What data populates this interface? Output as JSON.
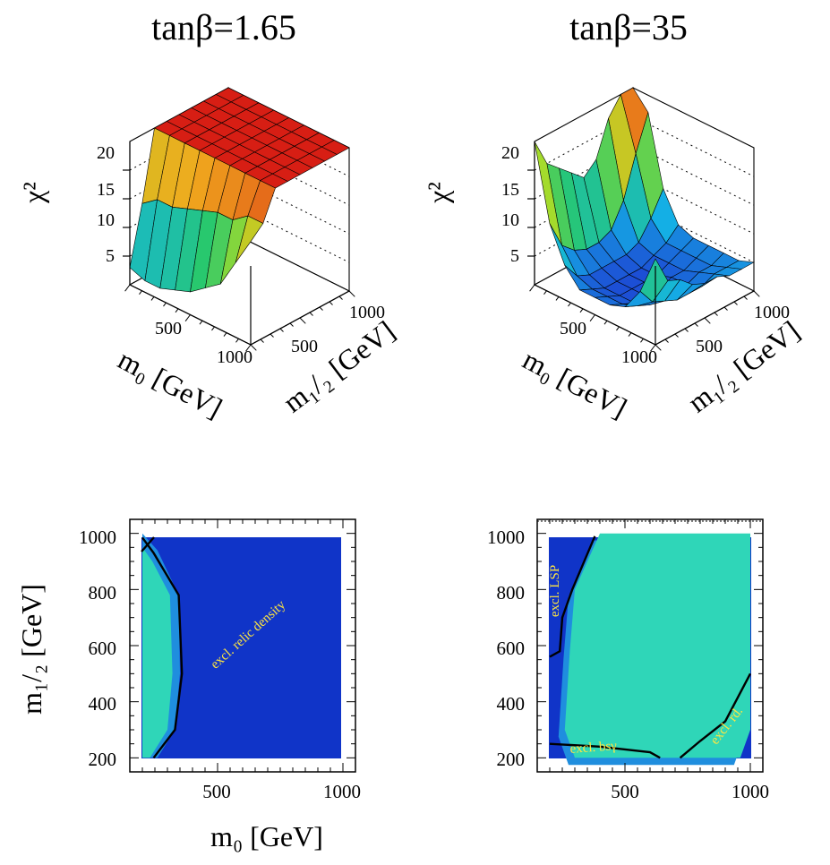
{
  "chart_data": [
    {
      "type": "surface",
      "title": "tanβ=1.65",
      "zlabel": "χ²",
      "xlabel": "m₀ [GeV]",
      "ylabel": "m₁/₂ [GeV]",
      "z_ticks": [
        "5",
        "10",
        "15",
        "20"
      ],
      "x_ticks": [
        "500",
        "1000"
      ],
      "y_ticks": [
        "500",
        "1000"
      ],
      "zlim": [
        0,
        25
      ],
      "x": [
        200,
        300,
        400,
        500,
        600,
        700,
        800,
        900,
        1000
      ],
      "y": [
        200,
        300,
        400,
        500,
        600,
        700,
        800,
        900,
        1000
      ],
      "z": [
        [
          3,
          2,
          2,
          3,
          4,
          6,
          8,
          13,
          18
        ],
        [
          13,
          15,
          15,
          16,
          17,
          18,
          18,
          20,
          20
        ],
        [
          25,
          25,
          25,
          25,
          25,
          25,
          25,
          25,
          25
        ],
        [
          25,
          25,
          25,
          25,
          25,
          25,
          25,
          25,
          25
        ],
        [
          25,
          25,
          25,
          25,
          25,
          25,
          25,
          25,
          25
        ],
        [
          25,
          25,
          25,
          25,
          25,
          25,
          25,
          25,
          25
        ],
        [
          25,
          25,
          25,
          25,
          25,
          25,
          25,
          25,
          25
        ],
        [
          25,
          25,
          25,
          25,
          25,
          25,
          25,
          25,
          25
        ],
        [
          25,
          25,
          25,
          25,
          25,
          25,
          25,
          25,
          25
        ]
      ]
    },
    {
      "type": "surface",
      "title": "tanβ=35",
      "zlabel": "χ²",
      "xlabel": "m₀ [GeV]",
      "ylabel": "m₁/₂ [GeV]",
      "z_ticks": [
        "5",
        "10",
        "15",
        "20"
      ],
      "x_ticks": [
        "500",
        "1000"
      ],
      "y_ticks": [
        "500",
        "1000"
      ],
      "zlim": [
        0,
        25
      ],
      "x": [
        200,
        300,
        400,
        500,
        600,
        700,
        800,
        900,
        1000
      ],
      "y": [
        200,
        300,
        400,
        500,
        600,
        700,
        800,
        900,
        1000
      ],
      "z": [
        [
          25,
          12,
          6,
          3,
          3,
          3,
          4,
          8,
          15
        ],
        [
          20,
          7,
          3,
          2,
          2,
          2,
          3,
          5,
          10
        ],
        [
          18,
          5,
          2,
          1,
          1,
          1,
          2,
          4,
          9
        ],
        [
          16,
          4,
          2,
          1,
          1,
          1,
          2,
          3,
          7
        ],
        [
          14,
          4,
          2,
          1,
          1,
          1,
          2,
          3,
          6
        ],
        [
          16,
          5,
          2,
          1,
          1,
          2,
          2,
          3,
          6
        ],
        [
          22,
          9,
          3,
          2,
          2,
          2,
          3,
          4,
          5
        ],
        [
          25,
          16,
          6,
          3,
          3,
          3,
          3,
          4,
          5
        ],
        [
          25,
          22,
          10,
          5,
          4,
          4,
          4,
          4,
          5
        ]
      ]
    },
    {
      "type": "contour",
      "xlabel": "m₀ [GeV]",
      "ylabel": "m₁/₂ [GeV]",
      "x_ticks": [
        "500",
        "1000"
      ],
      "y_ticks": [
        "200",
        "400",
        "600",
        "800",
        "1000"
      ],
      "xlim": [
        150,
        1050
      ],
      "ylim": [
        150,
        1050
      ],
      "colors": {
        "excluded": "#1034c8",
        "band": "#1f8ede",
        "allowed": "#2fd6b8",
        "label": "#ffe640"
      },
      "annotations": [
        "excl. relic density"
      ],
      "allowed_region": [
        [
          200,
          200
        ],
        [
          230,
          200
        ],
        [
          300,
          300
        ],
        [
          320,
          500
        ],
        [
          310,
          780
        ],
        [
          240,
          900
        ],
        [
          200,
          950
        ]
      ],
      "band_region": [
        [
          200,
          200
        ],
        [
          260,
          200
        ],
        [
          330,
          300
        ],
        [
          350,
          500
        ],
        [
          345,
          780
        ],
        [
          260,
          940
        ],
        [
          200,
          1000
        ]
      ],
      "boundary": [
        [
          245,
          200
        ],
        [
          330,
          300
        ],
        [
          358,
          500
        ],
        [
          345,
          780
        ],
        [
          245,
          930
        ],
        [
          200,
          985
        ]
      ]
    },
    {
      "type": "contour",
      "xlabel": "",
      "ylabel": "",
      "x_ticks": [
        "500",
        "1000"
      ],
      "y_ticks": [
        "200",
        "400",
        "600",
        "800",
        "1000"
      ],
      "xlim": [
        150,
        1050
      ],
      "ylim": [
        150,
        1050
      ],
      "colors": {
        "excluded": "#1034c8",
        "band": "#1f8ede",
        "allowed": "#2fd6b8",
        "label": "#ffe640"
      },
      "annotations": [
        "excl. LSP",
        "excl. bsγ",
        "excl. rd."
      ],
      "allowed_region": [
        [
          300,
          200
        ],
        [
          960,
          200
        ],
        [
          1000,
          300
        ],
        [
          1000,
          1000
        ],
        [
          400,
          1000
        ],
        [
          300,
          800
        ],
        [
          280,
          580
        ],
        [
          260,
          300
        ]
      ],
      "lsp_boundary": [
        [
          200,
          560
        ],
        [
          240,
          580
        ],
        [
          250,
          700
        ],
        [
          290,
          800
        ],
        [
          380,
          990
        ]
      ],
      "bsg_boundary": [
        [
          200,
          250
        ],
        [
          400,
          240
        ],
        [
          600,
          220
        ],
        [
          640,
          200
        ]
      ],
      "rd_boundary": [
        [
          720,
          200
        ],
        [
          800,
          260
        ],
        [
          900,
          330
        ],
        [
          1000,
          500
        ]
      ]
    }
  ]
}
